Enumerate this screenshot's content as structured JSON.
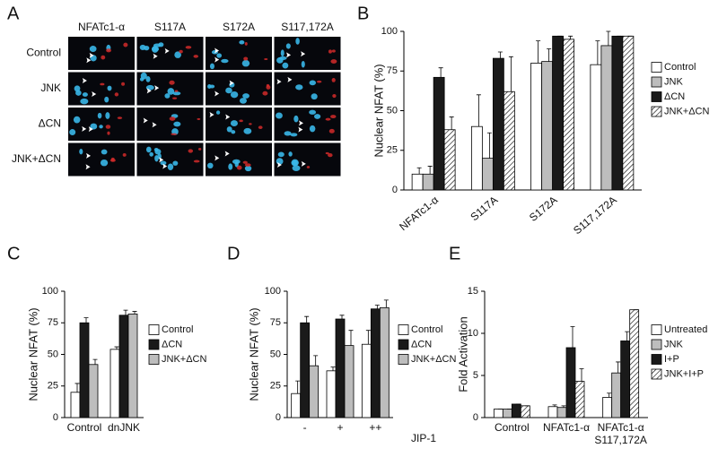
{
  "panel_labels": [
    "A",
    "B",
    "C",
    "D",
    "E"
  ],
  "panel_a": {
    "columns": [
      "NFATc1-α",
      "S117A",
      "S172A",
      "S117,172A"
    ],
    "rows": [
      "Control",
      "JNK",
      "ΔCN",
      "JNK+ΔCN"
    ]
  },
  "chart_data": [
    {
      "type": "bar",
      "y_label": "Nuclear NFAT (%)",
      "categories": [
        "NFATc1-α",
        "S117A",
        "S172A",
        "S117,172A"
      ],
      "ylim": [
        0,
        100
      ],
      "yticks": [
        0,
        25,
        50,
        75,
        100
      ],
      "series": [
        {
          "name": "Control",
          "color": "#ffffff",
          "values": [
            10,
            40,
            80,
            79
          ],
          "errors": [
            4,
            20,
            14,
            15
          ]
        },
        {
          "name": "JNK",
          "color": "#bdbdbd",
          "values": [
            10,
            20,
            81,
            91
          ],
          "errors": [
            5,
            16,
            8,
            9
          ]
        },
        {
          "name": "ΔCN",
          "color": "#1a1a1a",
          "values": [
            71,
            83,
            97,
            97
          ],
          "errors": [
            6,
            4,
            0,
            0
          ]
        },
        {
          "name": "JNK+ΔCN",
          "color": "#ffffff",
          "hatched": true,
          "values": [
            38,
            62,
            95,
            97
          ],
          "errors": [
            8,
            22,
            2,
            0
          ]
        }
      ]
    },
    {
      "type": "bar",
      "y_label": "Nuclear NFAT (%)",
      "categories": [
        "Control",
        "dnJNK"
      ],
      "ylim": [
        0,
        100
      ],
      "yticks": [
        0,
        25,
        50,
        75,
        100
      ],
      "series": [
        {
          "name": "Control",
          "color": "#ffffff",
          "values": [
            20,
            54
          ],
          "errors": [
            7,
            2
          ]
        },
        {
          "name": "ΔCN",
          "color": "#1a1a1a",
          "values": [
            75,
            81
          ],
          "errors": [
            4,
            4
          ]
        },
        {
          "name": "JNK+ΔCN",
          "color": "#bdbdbd",
          "values": [
            42,
            82
          ],
          "errors": [
            4,
            2
          ]
        }
      ]
    },
    {
      "type": "bar",
      "y_label": "Nuclear NFAT (%)",
      "x_label": "JIP-1",
      "categories": [
        "-",
        "+",
        "++"
      ],
      "ylim": [
        0,
        100
      ],
      "yticks": [
        0,
        25,
        50,
        75,
        100
      ],
      "series": [
        {
          "name": "Control",
          "color": "#ffffff",
          "values": [
            19,
            37,
            58
          ],
          "errors": [
            10,
            3,
            11
          ]
        },
        {
          "name": "ΔCN",
          "color": "#1a1a1a",
          "values": [
            75,
            78,
            86
          ],
          "errors": [
            5,
            3,
            3
          ]
        },
        {
          "name": "JNK+ΔCN",
          "color": "#bdbdbd",
          "values": [
            41,
            57,
            87
          ],
          "errors": [
            8,
            12,
            6
          ]
        }
      ]
    },
    {
      "type": "bar",
      "y_label": "Fold Activation",
      "categories": [
        "Control",
        "NFATc1-α",
        [
          "NFATc1-α",
          "S117,172A"
        ]
      ],
      "ylim": [
        0,
        15
      ],
      "yticks": [
        0,
        5,
        10,
        15
      ],
      "series": [
        {
          "name": "Untreated",
          "color": "#ffffff",
          "values": [
            1.0,
            1.3,
            2.4
          ],
          "errors": [
            0,
            0.2,
            0.5
          ]
        },
        {
          "name": "JNK",
          "color": "#bdbdbd",
          "values": [
            1.0,
            1.2,
            5.3
          ],
          "errors": [
            0,
            0.2,
            1.3
          ]
        },
        {
          "name": "I+P",
          "color": "#1a1a1a",
          "values": [
            1.6,
            8.3,
            9.1
          ],
          "errors": [
            0,
            2.5,
            1.1
          ]
        },
        {
          "name": "JNK+I+P",
          "color": "#ffffff",
          "hatched": true,
          "values": [
            1.4,
            4.3,
            12.8
          ],
          "errors": [
            0,
            1.5,
            0
          ]
        }
      ]
    }
  ]
}
